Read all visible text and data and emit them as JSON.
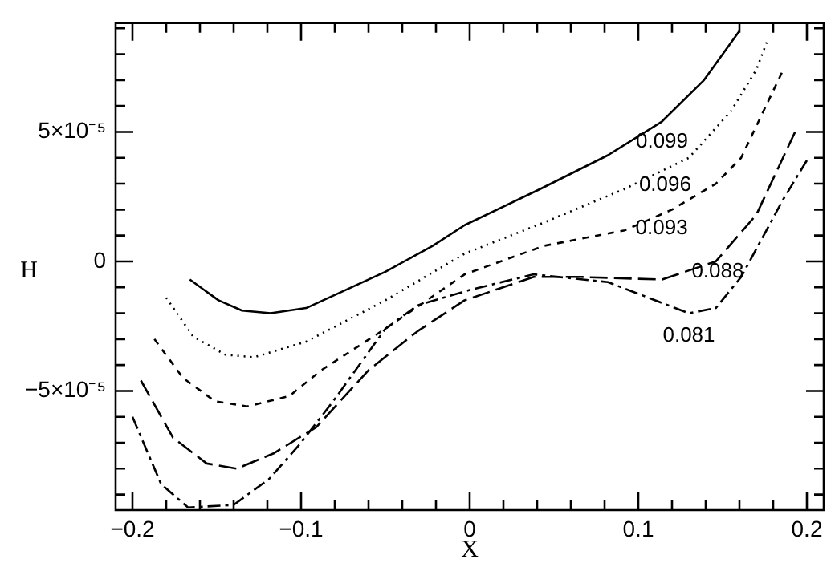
{
  "chart_data": {
    "type": "line",
    "xlabel": "X",
    "ylabel": "H",
    "xlim": [
      -0.21,
      0.21
    ],
    "ylim": [
      -9.6e-05,
      9.2e-05
    ],
    "xticks": [
      {
        "value": -0.2,
        "label": "−0.2"
      },
      {
        "value": -0.18,
        "label": null
      },
      {
        "value": -0.16,
        "label": null
      },
      {
        "value": -0.14,
        "label": null
      },
      {
        "value": -0.12,
        "label": null
      },
      {
        "value": -0.1,
        "label": "−0.1"
      },
      {
        "value": -0.08,
        "label": null
      },
      {
        "value": -0.06,
        "label": null
      },
      {
        "value": -0.04,
        "label": null
      },
      {
        "value": -0.02,
        "label": null
      },
      0,
      {
        "value": 0.02,
        "label": null
      },
      {
        "value": 0.04,
        "label": null
      },
      {
        "value": 0.06,
        "label": null
      },
      {
        "value": 0.08,
        "label": null
      },
      0.1,
      {
        "value": 0.12,
        "label": null
      },
      {
        "value": 0.14,
        "label": null
      },
      {
        "value": 0.16,
        "label": null
      },
      {
        "value": 0.18,
        "label": null
      },
      0.2
    ],
    "yticks": [
      {
        "value": -9e-05,
        "label": null
      },
      {
        "value": -8e-05,
        "label": null
      },
      {
        "value": -7e-05,
        "label": null
      },
      {
        "value": -6e-05,
        "label": null
      },
      {
        "value": -5e-05,
        "label": "−5×10⁻⁵"
      },
      {
        "value": -4e-05,
        "label": null
      },
      {
        "value": -3e-05,
        "label": null
      },
      {
        "value": -2e-05,
        "label": null
      },
      {
        "value": -1e-05,
        "label": null
      },
      0,
      {
        "value": 1e-05,
        "label": null
      },
      {
        "value": 2e-05,
        "label": null
      },
      {
        "value": 3e-05,
        "label": null
      },
      {
        "value": 4e-05,
        "label": null
      },
      {
        "value": 5e-05,
        "label": "5×10⁻⁵"
      },
      {
        "value": 6e-05,
        "label": null
      },
      {
        "value": 7e-05,
        "label": null
      },
      {
        "value": 8e-05,
        "label": null
      },
      {
        "value": 9e-05,
        "label": null
      }
    ],
    "grid": false,
    "legend": false,
    "marker": "none",
    "series": [
      {
        "name": "0.099",
        "color": "#000000",
        "line_style": "solid",
        "x": [
          -0.166,
          -0.149,
          -0.135,
          -0.118,
          -0.097,
          -0.05,
          -0.022,
          -0.003,
          0.042,
          0.082,
          0.114,
          0.139,
          0.16
        ],
        "values": [
          -7e-06,
          -1.5e-05,
          -1.9e-05,
          -2e-05,
          -1.8e-05,
          -4e-06,
          6e-06,
          1.4e-05,
          2.8e-05,
          4.1e-05,
          5.4e-05,
          7e-05,
          8.9e-05
        ]
      },
      {
        "name": "0.096",
        "color": "#000000",
        "line_style": "dotted",
        "x": [
          -0.18,
          -0.164,
          -0.145,
          -0.128,
          -0.097,
          -0.05,
          -0.003,
          0.044,
          0.092,
          0.13,
          0.155,
          0.17,
          0.177
        ],
        "values": [
          -1.4e-05,
          -2.9e-05,
          -3.6e-05,
          -3.7e-05,
          -3.1e-05,
          -1.5e-05,
          3e-06,
          1.5e-05,
          2.8e-05,
          4e-05,
          5.8e-05,
          7.4e-05,
          8.6e-05
        ]
      },
      {
        "name": "0.093",
        "color": "#000000",
        "line_style": "dashed",
        "x": [
          -0.187,
          -0.17,
          -0.151,
          -0.132,
          -0.107,
          -0.088,
          -0.05,
          -0.003,
          0.044,
          0.092,
          0.12,
          0.146,
          0.161,
          0.186
        ],
        "values": [
          -3e-05,
          -4.5e-05,
          -5.4e-05,
          -5.6e-05,
          -5.2e-05,
          -4.2e-05,
          -2.6e-05,
          -5e-06,
          6e-06,
          1.2e-05,
          2e-05,
          3e-05,
          4e-05,
          7.4e-05
        ]
      },
      {
        "name": "0.088",
        "color": "#000000",
        "line_style": "longdash",
        "x": [
          -0.195,
          -0.176,
          -0.156,
          -0.138,
          -0.116,
          -0.091,
          -0.06,
          -0.031,
          -0.003,
          0.038,
          0.066,
          0.114,
          0.146,
          0.17,
          0.193
        ],
        "values": [
          -4.6e-05,
          -6.8e-05,
          -7.8e-05,
          -8e-05,
          -7.4e-05,
          -6.4e-05,
          -4.2e-05,
          -2.7e-05,
          -1.5e-05,
          -6e-06,
          -6e-06,
          -7e-06,
          0,
          1.8e-05,
          5e-05
        ]
      },
      {
        "name": "0.081",
        "color": "#000000",
        "line_style": "dashdot",
        "x": [
          -0.2,
          -0.183,
          -0.167,
          -0.14,
          -0.119,
          -0.1,
          -0.081,
          -0.05,
          -0.031,
          0,
          0.038,
          0.082,
          0.13,
          0.146,
          0.161,
          0.186,
          0.2
        ],
        "values": [
          -6e-05,
          -8.6e-05,
          -9.5e-05,
          -9.4e-05,
          -8.4e-05,
          -7e-05,
          -5.4e-05,
          -2.6e-05,
          -1.7e-05,
          -1.1e-05,
          -5e-06,
          -8e-06,
          -2e-05,
          -1.8e-05,
          -6e-06,
          2.4e-05,
          3.9e-05
        ]
      }
    ]
  }
}
